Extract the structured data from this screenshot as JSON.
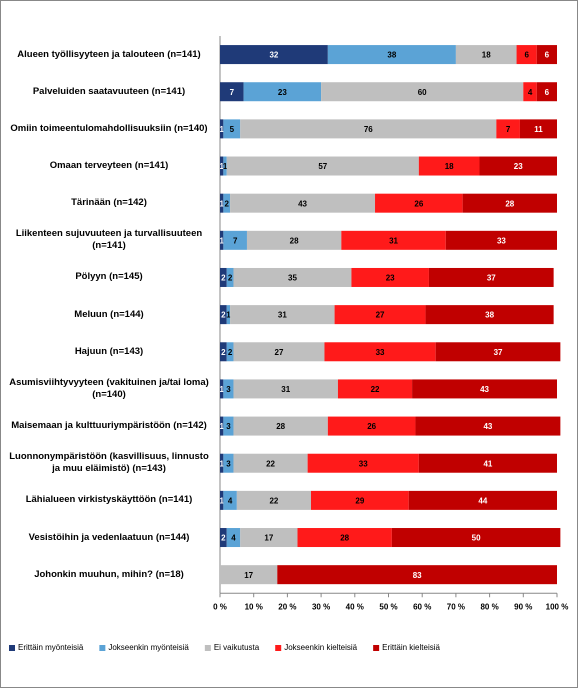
{
  "chart_data": {
    "type": "stacked-bar-horizontal",
    "categories": [
      "Alueen työllisyyteen ja talouteen (n=141)",
      "Palveluiden saatavuuteen (n=141)",
      "Omiin toimeentulomahdollisuuksiin (n=140)",
      "Omaan terveyteen (n=141)",
      "Tärinään (n=142)",
      "Liikenteen sujuvuuteen ja turvallisuuteen (n=141)",
      "Pölyyn (n=145)",
      "Meluun (n=144)",
      "Hajuun (n=143)",
      "Asumisviihtyvyyteen (vakituinen ja/tai loma) (n=140)",
      "Maisemaan ja kulttuuriympäristöön (n=142)",
      "Luonnonympäristöön (kasvillisuus, linnusto ja muu eläimistö) (n=143)",
      "Lähialueen virkistyskäyttöön (n=141)",
      "Vesistöihin ja vedenlaatuun (n=144)",
      "Johonkin muuhun, mihin? (n=18)"
    ],
    "series": [
      {
        "name": "Erittäin myönteisiä",
        "color": "#1f3a78",
        "values": [
          32,
          7,
          1,
          1,
          1,
          1,
          2,
          2,
          2,
          1,
          1,
          1,
          1,
          2,
          null
        ]
      },
      {
        "name": "Jokseenkin myönteisiä",
        "color": "#5ba3d6",
        "values": [
          38,
          23,
          5,
          1,
          2,
          7,
          2,
          1,
          2,
          3,
          3,
          3,
          4,
          4,
          null
        ]
      },
      {
        "name": "Ei vaikutusta",
        "color": "#bfbfbf",
        "values": [
          18,
          60,
          76,
          57,
          43,
          28,
          35,
          31,
          27,
          31,
          28,
          22,
          22,
          17,
          17
        ]
      },
      {
        "name": "Jokseenkin kielteisiä",
        "color": "#ff1a1a",
        "values": [
          6,
          4,
          7,
          18,
          26,
          31,
          23,
          27,
          33,
          22,
          26,
          33,
          29,
          28,
          null
        ]
      },
      {
        "name": "Erittäin kielteisiä",
        "color": "#c00000",
        "values": [
          6,
          6,
          11,
          23,
          28,
          33,
          37,
          38,
          37,
          43,
          43,
          41,
          44,
          50,
          83
        ]
      }
    ],
    "xlim": [
      0,
      100
    ],
    "xticks": [
      {
        "value": 0,
        "label": "0 %"
      },
      {
        "value": 10,
        "label": "10 %"
      },
      {
        "value": 20,
        "label": "20 %"
      },
      {
        "value": 30,
        "label": "30 %"
      },
      {
        "value": 40,
        "label": "40 %"
      },
      {
        "value": 50,
        "label": "50 %"
      },
      {
        "value": 60,
        "label": "60 %"
      },
      {
        "value": 70,
        "label": "70 %"
      },
      {
        "value": 80,
        "label": "80 %"
      },
      {
        "value": 90,
        "label": "90 %"
      },
      {
        "value": 100,
        "label": "100 %"
      }
    ]
  }
}
